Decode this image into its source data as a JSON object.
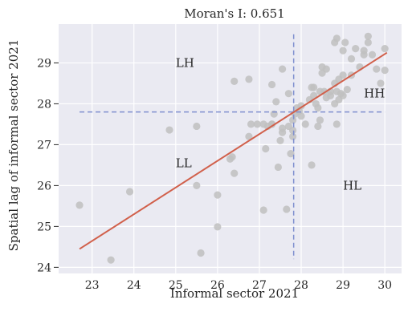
{
  "chart_data": {
    "type": "scatter",
    "title": "Moran's I: 0.651",
    "xlabel": "Informal sector 2021",
    "ylabel": "Spatial lag of informal sector 2021",
    "xlim": [
      22.2,
      30.4
    ],
    "ylim": [
      23.85,
      29.95
    ],
    "xticks": [
      23,
      24,
      25,
      26,
      27,
      28,
      29,
      30
    ],
    "yticks": [
      24,
      25,
      26,
      27,
      28,
      29
    ],
    "grid": true,
    "background": "#eaeaf2",
    "grid_color": "#ffffff",
    "point_color": "#bfbfbf",
    "regression_color": "#d1604b",
    "quadrant_line_color": "#7f8fcf",
    "mean_x": 27.82,
    "mean_y": 27.8,
    "vline_y_range": [
      24.2,
      29.7
    ],
    "hline_x_range": [
      22.7,
      30.0
    ],
    "regression": [
      [
        22.7,
        24.45
      ],
      [
        30.05,
        29.25
      ]
    ],
    "quadrant_labels": [
      {
        "text": "LH",
        "x": 25.0,
        "y": 29.0
      },
      {
        "text": "HH",
        "x": 29.5,
        "y": 28.25
      },
      {
        "text": "LL",
        "x": 25.0,
        "y": 26.55
      },
      {
        "text": "HL",
        "x": 29.0,
        "y": 26.0
      }
    ],
    "points": [
      [
        22.7,
        25.52
      ],
      [
        23.45,
        24.18
      ],
      [
        23.9,
        25.85
      ],
      [
        24.85,
        27.36
      ],
      [
        25.5,
        27.45
      ],
      [
        25.5,
        26.0
      ],
      [
        25.6,
        24.35
      ],
      [
        26.0,
        25.77
      ],
      [
        26.0,
        24.99
      ],
      [
        26.3,
        26.65
      ],
      [
        26.35,
        26.7
      ],
      [
        26.4,
        26.3
      ],
      [
        26.4,
        28.55
      ],
      [
        26.75,
        28.6
      ],
      [
        26.75,
        27.2
      ],
      [
        26.8,
        27.5
      ],
      [
        26.95,
        27.5
      ],
      [
        27.1,
        27.5
      ],
      [
        27.1,
        25.4
      ],
      [
        27.15,
        26.9
      ],
      [
        27.3,
        27.5
      ],
      [
        27.3,
        27.5
      ],
      [
        27.3,
        28.47
      ],
      [
        27.35,
        27.75
      ],
      [
        27.4,
        28.05
      ],
      [
        27.45,
        26.45
      ],
      [
        27.5,
        27.1
      ],
      [
        27.55,
        27.3
      ],
      [
        27.55,
        27.4
      ],
      [
        27.55,
        28.85
      ],
      [
        27.65,
        25.42
      ],
      [
        27.7,
        27.45
      ],
      [
        27.7,
        28.25
      ],
      [
        27.75,
        26.78
      ],
      [
        27.8,
        27.2
      ],
      [
        27.8,
        27.35
      ],
      [
        27.8,
        27.6
      ],
      [
        27.85,
        27.75
      ],
      [
        27.9,
        27.9
      ],
      [
        27.95,
        27.82
      ],
      [
        28.0,
        27.7
      ],
      [
        28.0,
        27.95
      ],
      [
        28.1,
        27.5
      ],
      [
        28.2,
        28.1
      ],
      [
        28.25,
        26.5
      ],
      [
        28.3,
        28.2
      ],
      [
        28.3,
        28.4
      ],
      [
        28.35,
        28.0
      ],
      [
        28.4,
        27.45
      ],
      [
        28.4,
        27.9
      ],
      [
        28.45,
        27.6
      ],
      [
        28.45,
        28.3
      ],
      [
        28.5,
        28.9
      ],
      [
        28.5,
        28.75
      ],
      [
        28.6,
        28.85
      ],
      [
        28.6,
        28.15
      ],
      [
        28.7,
        28.2
      ],
      [
        28.7,
        28.3
      ],
      [
        28.8,
        28.0
      ],
      [
        28.8,
        28.5
      ],
      [
        28.85,
        27.5
      ],
      [
        28.85,
        28.3
      ],
      [
        28.9,
        28.1
      ],
      [
        28.9,
        28.6
      ],
      [
        28.95,
        28.25
      ],
      [
        29.0,
        28.2
      ],
      [
        29.0,
        28.7
      ],
      [
        29.0,
        29.3
      ],
      [
        29.05,
        29.5
      ],
      [
        29.1,
        28.35
      ],
      [
        29.2,
        29.1
      ],
      [
        29.2,
        28.7
      ],
      [
        29.3,
        29.35
      ],
      [
        29.4,
        28.9
      ],
      [
        29.5,
        29.3
      ],
      [
        29.5,
        29.2
      ],
      [
        29.6,
        29.65
      ],
      [
        29.6,
        29.5
      ],
      [
        29.7,
        29.2
      ],
      [
        29.8,
        28.85
      ],
      [
        29.9,
        28.5
      ],
      [
        30.0,
        29.35
      ],
      [
        30.0,
        28.82
      ],
      [
        28.85,
        29.6
      ],
      [
        28.8,
        29.5
      ],
      [
        28.55,
        28.3
      ],
      [
        27.2,
        27.45
      ],
      [
        28.25,
        28.4
      ]
    ]
  }
}
